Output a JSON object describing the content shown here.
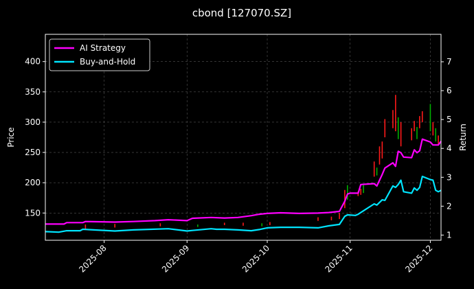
{
  "chart_data": {
    "type": "line",
    "title": "cbond [127070.SZ]",
    "ylabel": "Price",
    "y2label": "Return",
    "xlim": [
      "2025-07-10",
      "2025-12-05"
    ],
    "ylim": [
      105,
      445
    ],
    "y2lim": [
      0.82,
      7.95
    ],
    "x_ticks": [
      "2025-08",
      "2025-09",
      "2025-10",
      "2025-11",
      "2025-12"
    ],
    "y_ticks": [
      150,
      200,
      250,
      300,
      350,
      400
    ],
    "y2_ticks": [
      1,
      2,
      3,
      4,
      5,
      6,
      7
    ],
    "grid": true,
    "legend_position": "top-left",
    "colors": {
      "background": "#000000",
      "ai_strategy": "#ff00ff",
      "buy_hold": "#00e5ff",
      "candle_up": "#ff1a1a",
      "candle_down": "#00b000",
      "grid": "#555555"
    },
    "series": [
      {
        "name": "AI Strategy",
        "x": [
          "2025-07-10",
          "2025-07-17",
          "2025-07-18",
          "2025-07-24",
          "2025-07-25",
          "2025-08-05",
          "2025-08-12",
          "2025-08-20",
          "2025-08-25",
          "2025-09-01",
          "2025-09-03",
          "2025-09-10",
          "2025-09-15",
          "2025-09-20",
          "2025-09-25",
          "2025-09-28",
          "2025-10-01",
          "2025-10-06",
          "2025-10-13",
          "2025-10-20",
          "2025-10-24",
          "2025-10-28",
          "2025-10-30",
          "2025-10-31",
          "2025-11-01",
          "2025-11-04",
          "2025-11-05",
          "2025-11-10",
          "2025-11-11",
          "2025-11-13",
          "2025-11-14",
          "2025-11-17",
          "2025-11-18",
          "2025-11-19",
          "2025-11-20",
          "2025-11-21",
          "2025-11-24",
          "2025-11-25",
          "2025-11-26",
          "2025-11-27",
          "2025-11-28",
          "2025-12-01",
          "2025-12-02",
          "2025-12-03",
          "2025-12-04",
          "2025-12-05"
        ],
        "values": [
          1.38,
          1.38,
          1.43,
          1.43,
          1.47,
          1.45,
          1.47,
          1.5,
          1.53,
          1.5,
          1.58,
          1.61,
          1.59,
          1.61,
          1.67,
          1.72,
          1.75,
          1.77,
          1.75,
          1.76,
          1.78,
          1.82,
          2.17,
          2.42,
          2.45,
          2.45,
          2.75,
          2.78,
          2.7,
          3.1,
          3.32,
          3.5,
          3.38,
          3.9,
          3.85,
          3.7,
          3.68,
          3.95,
          3.85,
          3.92,
          4.32,
          4.22,
          4.12,
          4.12,
          4.12,
          4.25
        ]
      },
      {
        "name": "Buy-and-Hold",
        "x": [
          "2025-07-10",
          "2025-07-15",
          "2025-07-18",
          "2025-07-23",
          "2025-07-24",
          "2025-08-05",
          "2025-08-12",
          "2025-08-25",
          "2025-09-01",
          "2025-09-03",
          "2025-09-10",
          "2025-09-12",
          "2025-09-15",
          "2025-09-20",
          "2025-09-25",
          "2025-09-28",
          "2025-10-01",
          "2025-10-06",
          "2025-10-13",
          "2025-10-20",
          "2025-10-24",
          "2025-10-28",
          "2025-10-30",
          "2025-10-31",
          "2025-11-03",
          "2025-11-04",
          "2025-11-05",
          "2025-11-10",
          "2025-11-11",
          "2025-11-13",
          "2025-11-14",
          "2025-11-17",
          "2025-11-18",
          "2025-11-19",
          "2025-11-20",
          "2025-11-21",
          "2025-11-24",
          "2025-11-25",
          "2025-11-26",
          "2025-11-27",
          "2025-11-28",
          "2025-12-01",
          "2025-12-02",
          "2025-12-03",
          "2025-12-04",
          "2025-12-05"
        ],
        "values": [
          1.12,
          1.1,
          1.15,
          1.15,
          1.2,
          1.14,
          1.18,
          1.22,
          1.14,
          1.16,
          1.22,
          1.2,
          1.2,
          1.18,
          1.15,
          1.19,
          1.25,
          1.27,
          1.27,
          1.25,
          1.32,
          1.37,
          1.65,
          1.7,
          1.68,
          1.72,
          1.78,
          2.08,
          2.04,
          2.22,
          2.2,
          2.7,
          2.65,
          2.75,
          2.9,
          2.5,
          2.45,
          2.63,
          2.55,
          2.65,
          3.03,
          2.92,
          2.9,
          2.55,
          2.5,
          2.55
        ]
      }
    ],
    "candles": [
      {
        "x": "2025-07-25",
        "low": 124,
        "high": 131,
        "color": "up"
      },
      {
        "x": "2025-08-05",
        "low": 126,
        "high": 132,
        "color": "up"
      },
      {
        "x": "2025-08-22",
        "low": 128,
        "high": 133,
        "color": "up"
      },
      {
        "x": "2025-09-05",
        "low": 127,
        "high": 131,
        "color": "down"
      },
      {
        "x": "2025-09-15",
        "low": 130,
        "high": 134,
        "color": "up"
      },
      {
        "x": "2025-09-22",
        "low": 129,
        "high": 134,
        "color": "up"
      },
      {
        "x": "2025-09-29",
        "low": 128,
        "high": 133,
        "color": "down"
      },
      {
        "x": "2025-10-02",
        "low": 130,
        "high": 135,
        "color": "up"
      },
      {
        "x": "2025-10-20",
        "low": 137,
        "high": 143,
        "color": "up"
      },
      {
        "x": "2025-10-25",
        "low": 138,
        "high": 144,
        "color": "up"
      },
      {
        "x": "2025-10-28",
        "low": 140,
        "high": 150,
        "color": "up"
      },
      {
        "x": "2025-10-30",
        "low": 158,
        "high": 188,
        "color": "up"
      },
      {
        "x": "2025-10-31",
        "low": 172,
        "high": 196,
        "color": "down"
      },
      {
        "x": "2025-11-04",
        "low": 178,
        "high": 186,
        "color": "up"
      },
      {
        "x": "2025-11-05",
        "low": 180,
        "high": 190,
        "color": "up"
      },
      {
        "x": "2025-11-06",
        "low": 183,
        "high": 196,
        "color": "down"
      },
      {
        "x": "2025-11-10",
        "low": 210,
        "high": 235,
        "color": "up"
      },
      {
        "x": "2025-11-11",
        "low": 212,
        "high": 225,
        "color": "down"
      },
      {
        "x": "2025-11-12",
        "low": 230,
        "high": 260,
        "color": "up"
      },
      {
        "x": "2025-11-13",
        "low": 240,
        "high": 268,
        "color": "up"
      },
      {
        "x": "2025-11-14",
        "low": 275,
        "high": 305,
        "color": "up"
      },
      {
        "x": "2025-11-17",
        "low": 290,
        "high": 320,
        "color": "up"
      },
      {
        "x": "2025-11-18",
        "low": 285,
        "high": 345,
        "color": "up"
      },
      {
        "x": "2025-11-19",
        "low": 272,
        "high": 308,
        "color": "down"
      },
      {
        "x": "2025-11-20",
        "low": 260,
        "high": 300,
        "color": "up"
      },
      {
        "x": "2025-11-24",
        "low": 270,
        "high": 290,
        "color": "up"
      },
      {
        "x": "2025-11-25",
        "low": 285,
        "high": 302,
        "color": "up"
      },
      {
        "x": "2025-11-26",
        "low": 272,
        "high": 292,
        "color": "down"
      },
      {
        "x": "2025-11-27",
        "low": 290,
        "high": 310,
        "color": "up"
      },
      {
        "x": "2025-11-28",
        "low": 300,
        "high": 318,
        "color": "up"
      },
      {
        "x": "2025-12-01",
        "low": 285,
        "high": 330,
        "color": "down"
      },
      {
        "x": "2025-12-02",
        "low": 278,
        "high": 300,
        "color": "up"
      },
      {
        "x": "2025-12-03",
        "low": 268,
        "high": 290,
        "color": "down"
      },
      {
        "x": "2025-12-04",
        "low": 262,
        "high": 278,
        "color": "up"
      }
    ]
  }
}
